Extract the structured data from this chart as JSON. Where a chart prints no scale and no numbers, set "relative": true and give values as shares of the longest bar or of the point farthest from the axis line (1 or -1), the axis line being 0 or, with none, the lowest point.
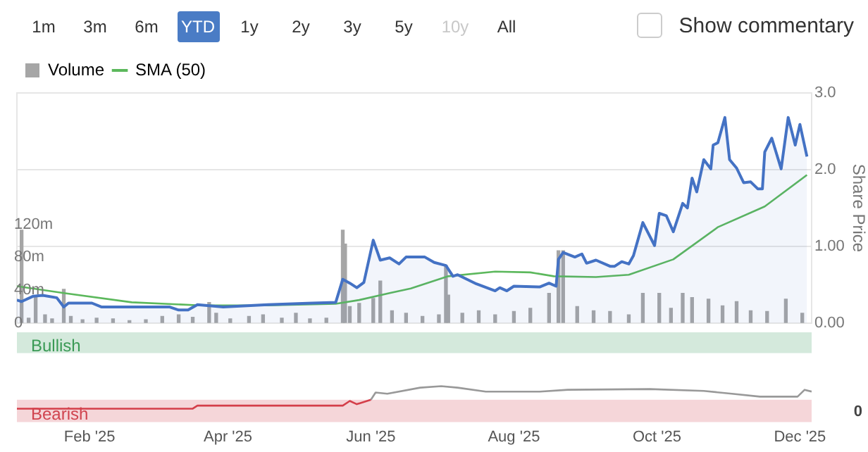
{
  "chart_data": [
    {
      "type": "area",
      "annotations": [
        "1m",
        "3m",
        "6m",
        "YTD",
        "1y",
        "2y",
        "3y",
        "5y",
        "10y",
        "All",
        "Show commentary"
      ],
      "y2label": "Share Price",
      "legend": "top left",
      "grid": "y",
      "tick_labels": "y",
      "xlim": [
        "2025-01-01",
        "2025-12-06"
      ],
      "ylim": [
        0,
        280
      ],
      "yticks": [
        {
          "value": 0,
          "label": "0"
        },
        {
          "value": 40,
          "label": "40m"
        },
        {
          "value": 80,
          "label": "80m"
        },
        {
          "value": 120,
          "label": "120m"
        }
      ],
      "y2lim": [
        0,
        3
      ],
      "y2ticks": [
        {
          "value": 0,
          "label": "0.00"
        },
        {
          "value": 1,
          "label": "1.00"
        },
        {
          "value": 2,
          "label": "2.0"
        },
        {
          "value": 3,
          "label": "3.0"
        }
      ],
      "series": [
        {
          "type": "bar",
          "name": "Volume",
          "color": "#a6a6a6",
          "x": [
            "2025-01-03",
            "2025-01-06",
            "2025-01-09",
            "2025-01-13",
            "2025-01-16",
            "2025-01-21",
            "2025-01-24",
            "2025-01-29",
            "2025-02-04",
            "2025-02-11",
            "2025-02-18",
            "2025-02-25",
            "2025-03-04",
            "2025-03-11",
            "2025-03-17",
            "2025-03-24",
            "2025-03-27",
            "2025-04-02",
            "2025-04-10",
            "2025-04-16",
            "2025-04-24",
            "2025-04-30",
            "2025-05-06",
            "2025-05-13",
            "2025-05-20",
            "2025-05-21",
            "2025-05-23",
            "2025-05-27",
            "2025-06-02",
            "2025-06-05",
            "2025-06-10",
            "2025-06-16",
            "2025-06-23",
            "2025-06-30",
            "2025-07-03",
            "2025-07-04",
            "2025-07-10",
            "2025-07-17",
            "2025-07-24",
            "2025-08-01",
            "2025-08-08",
            "2025-08-16",
            "2025-08-20",
            "2025-08-22",
            "2025-08-28",
            "2025-09-04",
            "2025-09-11",
            "2025-09-19",
            "2025-09-25",
            "2025-10-02",
            "2025-10-07",
            "2025-10-12",
            "2025-10-16",
            "2025-10-23",
            "2025-10-29",
            "2025-11-04",
            "2025-11-10",
            "2025-11-17",
            "2025-11-25",
            "2025-12-02"
          ],
          "values": [
            113,
            6,
            31,
            10,
            5,
            41,
            8,
            4,
            6,
            5,
            3,
            4,
            8,
            10,
            7,
            25,
            12,
            5,
            8,
            10,
            6,
            12,
            5,
            6,
            113,
            96,
            20,
            24,
            30,
            51,
            15,
            12,
            8,
            10,
            70,
            34,
            12,
            15,
            10,
            14,
            18,
            36,
            88,
            88,
            20,
            15,
            14,
            10,
            36,
            36,
            18,
            36,
            31,
            29,
            21,
            26,
            15,
            14,
            29,
            12
          ]
        },
        {
          "type": "line",
          "name": "SMA (50)",
          "color": "#5cb85c",
          "axis": "y2",
          "x": [
            "2025-01-01",
            "2025-01-21",
            "2025-02-19",
            "2025-03-20",
            "2025-04-18",
            "2025-05-17",
            "2025-05-27",
            "2025-06-09",
            "2025-06-18",
            "2025-07-04",
            "2025-07-24",
            "2025-08-08",
            "2025-08-18",
            "2025-09-05",
            "2025-09-19",
            "2025-10-08",
            "2025-10-27",
            "2025-11-16",
            "2025-12-04"
          ],
          "values": [
            0.48,
            0.39,
            0.27,
            0.23,
            0.23,
            0.25,
            0.3,
            0.39,
            0.45,
            0.61,
            0.67,
            0.66,
            0.61,
            0.6,
            0.63,
            0.83,
            1.25,
            1.52,
            1.93
          ]
        },
        {
          "color": "#4472c4",
          "axis": "y2",
          "x": [
            "2025-01-01",
            "2025-01-03",
            "2025-01-08",
            "2025-01-12",
            "2025-01-18",
            "2025-01-21",
            "2025-01-23",
            "2025-02-02",
            "2025-02-06",
            "2025-03-07",
            "2025-03-11",
            "2025-03-15",
            "2025-03-19",
            "2025-03-30",
            "2025-04-18",
            "2025-05-07",
            "2025-05-17",
            "2025-05-20",
            "2025-05-23",
            "2025-05-26",
            "2025-05-29",
            "2025-06-02",
            "2025-06-05",
            "2025-06-09",
            "2025-06-13",
            "2025-06-16",
            "2025-06-24",
            "2025-06-28",
            "2025-07-03",
            "2025-07-06",
            "2025-07-08",
            "2025-07-16",
            "2025-07-24",
            "2025-07-26",
            "2025-07-29",
            "2025-08-01",
            "2025-08-12",
            "2025-08-16",
            "2025-08-19",
            "2025-08-20",
            "2025-08-22",
            "2025-08-27",
            "2025-08-30",
            "2025-09-01",
            "2025-09-05",
            "2025-09-11",
            "2025-09-13",
            "2025-09-16",
            "2025-09-19",
            "2025-09-21",
            "2025-09-25",
            "2025-09-30",
            "2025-10-02",
            "2025-10-05",
            "2025-10-08",
            "2025-10-12",
            "2025-10-14",
            "2025-10-16",
            "2025-10-18",
            "2025-10-21",
            "2025-10-24",
            "2025-10-25",
            "2025-10-27",
            "2025-10-30",
            "2025-11-01",
            "2025-11-04",
            "2025-11-07",
            "2025-11-10",
            "2025-11-13",
            "2025-11-15",
            "2025-11-16",
            "2025-11-19",
            "2025-11-23",
            "2025-11-26",
            "2025-11-29",
            "2025-12-01",
            "2025-12-04"
          ],
          "values": [
            0.3,
            0.28,
            0.35,
            0.36,
            0.33,
            0.21,
            0.26,
            0.26,
            0.21,
            0.21,
            0.17,
            0.17,
            0.24,
            0.21,
            0.24,
            0.26,
            0.27,
            0.57,
            0.52,
            0.46,
            0.53,
            1.08,
            0.82,
            0.85,
            0.77,
            0.86,
            0.86,
            0.79,
            0.75,
            0.61,
            0.63,
            0.51,
            0.42,
            0.46,
            0.42,
            0.48,
            0.47,
            0.52,
            0.48,
            0.83,
            0.92,
            0.86,
            0.9,
            0.78,
            0.82,
            0.74,
            0.74,
            0.8,
            0.77,
            0.88,
            1.31,
            1.01,
            1.43,
            1.4,
            1.19,
            1.56,
            1.5,
            1.89,
            1.71,
            2.13,
            2.01,
            2.32,
            2.35,
            2.68,
            2.13,
            2.02,
            1.83,
            1.84,
            1.75,
            1.75,
            2.23,
            2.41,
            2.01,
            2.68,
            2.32,
            2.59,
            2.17
          ]
        }
      ]
    },
    {
      "type": "line",
      "relative": true,
      "tick_labels": "x",
      "annotations": [
        "0"
      ],
      "xlim": [
        "2025-01-01",
        "2025-12-06"
      ],
      "xticks": [
        {
          "value": "2025-02-01",
          "label": "Feb '25"
        },
        {
          "value": "2025-04-01",
          "label": "Apr '25"
        },
        {
          "value": "2025-06-01",
          "label": "Jun '25"
        },
        {
          "value": "2025-08-01",
          "label": "Aug '25"
        },
        {
          "value": "2025-10-01",
          "label": "Oct '25"
        },
        {
          "value": "2025-12-01",
          "label": "Dec '25"
        }
      ],
      "bands": [
        {
          "axis": "y",
          "from": 1.92,
          "to": 2.5,
          "label": "Bullish",
          "color": "#d4e9dc"
        },
        {
          "axis": "y",
          "from": 0,
          "to": 0.625,
          "label": "Bearish",
          "color": "#f5d6d9"
        }
      ],
      "series": [
        {
          "color": "#d43f4a",
          "x": [
            "2025-01-01",
            "2025-03-17",
            "2025-03-19",
            "2025-05-20",
            "2025-05-23",
            "2025-05-26",
            "2025-06-01"
          ],
          "values": [
            0.375,
            0.375,
            0.46,
            0.46,
            0.59,
            0.5,
            0.625
          ]
        },
        {
          "color": "#999999",
          "x": [
            "2025-06-01",
            "2025-06-03",
            "2025-06-08",
            "2025-06-22",
            "2025-07-01",
            "2025-07-08",
            "2025-07-20",
            "2025-08-12",
            "2025-08-24",
            "2025-09-28",
            "2025-10-21",
            "2025-11-02",
            "2025-11-14",
            "2025-11-30",
            "2025-12-03",
            "2025-12-06"
          ],
          "values": [
            0.625,
            0.825,
            0.79,
            0.96,
            1.0,
            0.96,
            0.85,
            0.85,
            0.9,
            0.92,
            0.87,
            0.79,
            0.71,
            0.71,
            0.9,
            0.85
          ]
        }
      ]
    }
  ]
}
